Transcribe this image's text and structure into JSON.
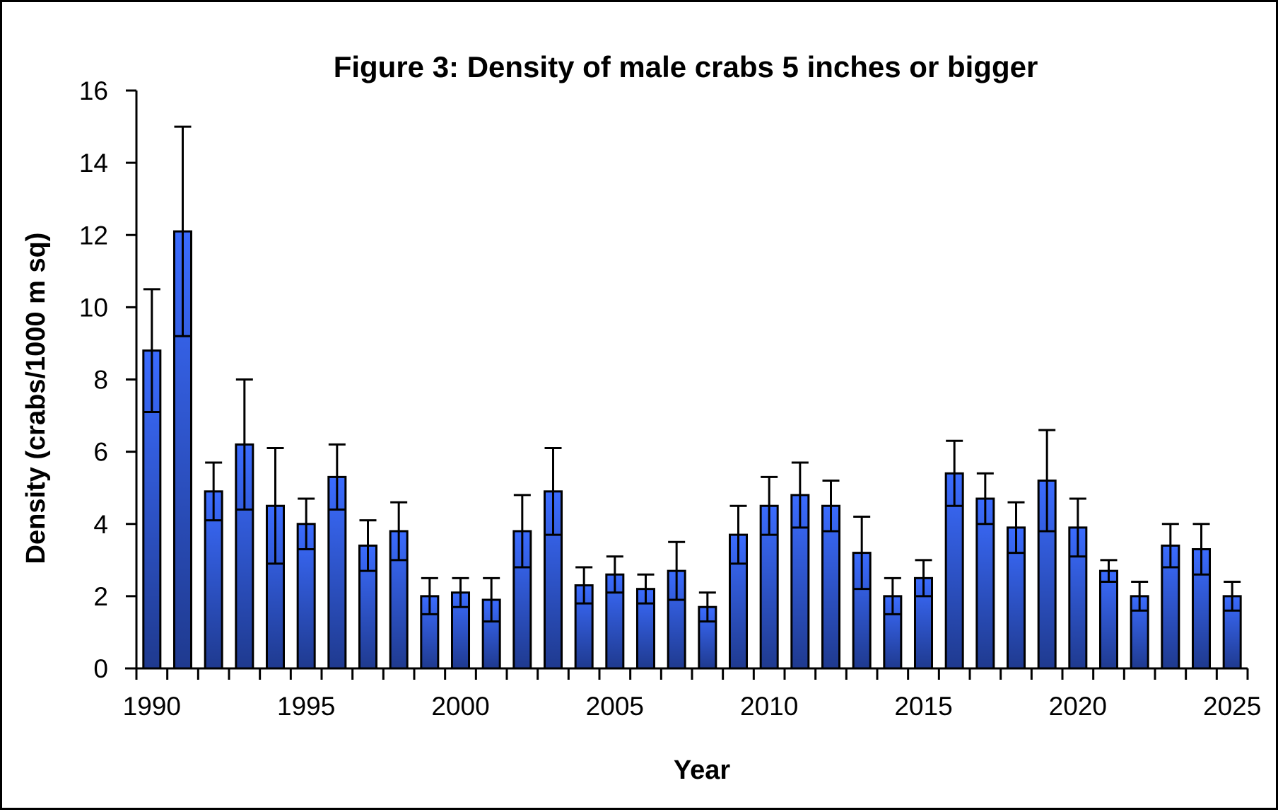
{
  "chart_data": {
    "type": "bar",
    "title": "Figure 3: Density of male crabs 5 inches or bigger",
    "xlabel": "Year",
    "ylabel": "Density  (crabs/1000  m sq)",
    "ylim": [
      0,
      16
    ],
    "yticks": [
      0,
      2,
      4,
      6,
      8,
      10,
      12,
      14,
      16
    ],
    "xtick_labels": [
      "1990",
      "1995",
      "2000",
      "2005",
      "2010",
      "2015",
      "2020",
      "2025"
    ],
    "grid": false,
    "legend": "none",
    "bar_color": "#3366ff",
    "bar_color_dark": "#1f3a8f",
    "categories": [
      "1990",
      "1991",
      "1992",
      "1993",
      "1994",
      "1995",
      "1996",
      "1997",
      "1998",
      "1999",
      "2000",
      "2001",
      "2002",
      "2003",
      "2004",
      "2005",
      "2006",
      "2007",
      "2008",
      "2009",
      "2010",
      "2011",
      "2012",
      "2013",
      "2014",
      "2015",
      "2016",
      "2017",
      "2018",
      "2019",
      "2020",
      "2021",
      "2022",
      "2023",
      "2024",
      "2025"
    ],
    "series": [
      {
        "name": "Density",
        "values": [
          8.8,
          12.1,
          4.9,
          6.2,
          4.5,
          4.0,
          5.3,
          3.4,
          3.8,
          2.0,
          2.1,
          1.9,
          3.8,
          4.9,
          2.3,
          2.6,
          2.2,
          2.7,
          1.7,
          3.7,
          4.5,
          4.8,
          4.5,
          3.2,
          2.0,
          2.5,
          5.4,
          4.7,
          3.9,
          5.2,
          3.9,
          2.7,
          2.0,
          3.4,
          3.3,
          2.0
        ],
        "error": [
          1.7,
          2.9,
          0.8,
          1.8,
          1.6,
          0.7,
          0.9,
          0.7,
          0.8,
          0.5,
          0.4,
          0.6,
          1.0,
          1.2,
          0.5,
          0.5,
          0.4,
          0.8,
          0.4,
          0.8,
          0.8,
          0.9,
          0.7,
          1.0,
          0.5,
          0.5,
          0.9,
          0.7,
          0.7,
          1.4,
          0.8,
          0.3,
          0.4,
          0.6,
          0.7,
          0.4
        ]
      }
    ]
  }
}
